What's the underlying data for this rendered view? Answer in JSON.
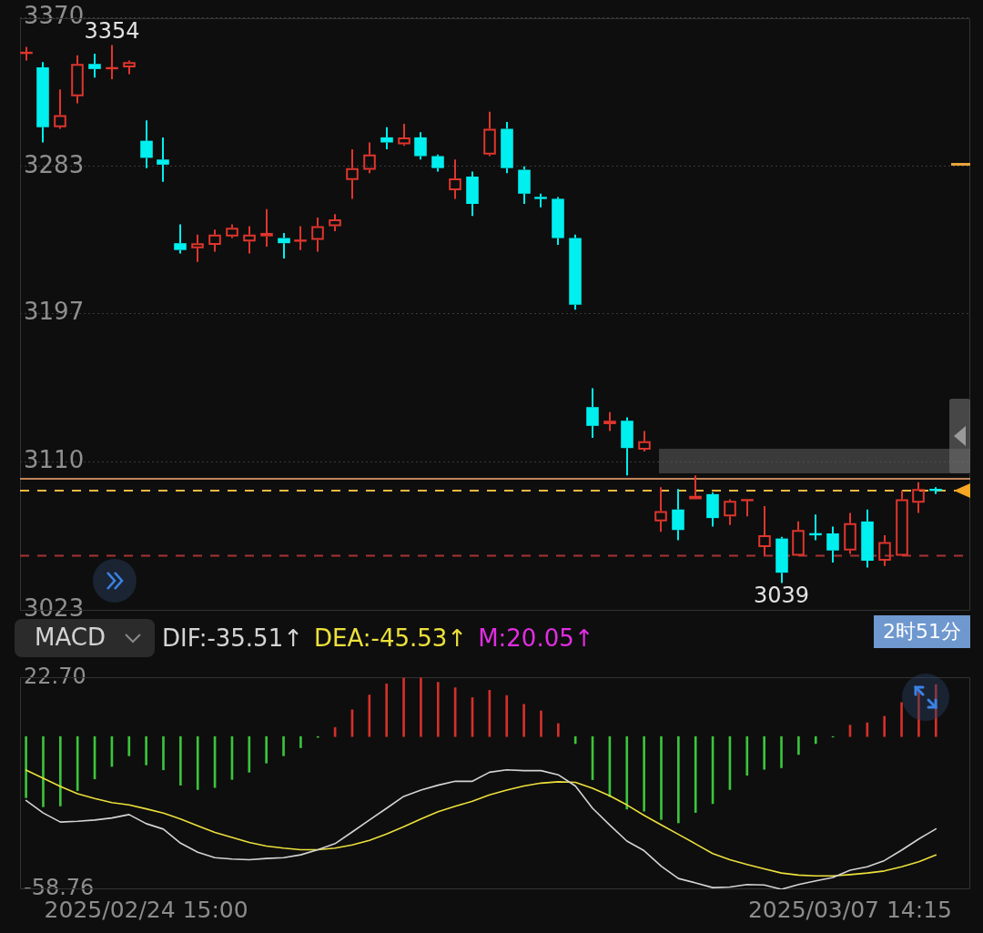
{
  "chart_data": [
    {
      "type": "candlestick",
      "categories": [
        null,
        null,
        null,
        null,
        null,
        null,
        null,
        "2025/02/24 15:00",
        null,
        null,
        null,
        null,
        null,
        null,
        null,
        null,
        null,
        null,
        null,
        null,
        null,
        null,
        null,
        null,
        null,
        null,
        null,
        null,
        null,
        null,
        null,
        null,
        null,
        null,
        null,
        null,
        null,
        null,
        null,
        null,
        null,
        null,
        null,
        null,
        null,
        null,
        null,
        null,
        "2025/03/07 14:15",
        null,
        null,
        null,
        null,
        null
      ],
      "ohlc": [
        [
          3349,
          3353,
          3345,
          3350
        ],
        [
          3341,
          3344,
          3297,
          3306
        ],
        [
          3306,
          3328,
          3305,
          3313
        ],
        [
          3324,
          3348,
          3320,
          3343
        ],
        [
          3343,
          3349,
          3335,
          3340
        ],
        [
          3340,
          3354,
          3334,
          3341
        ],
        [
          3341,
          3345,
          3337,
          3344
        ],
        [
          3298,
          3310,
          3282,
          3288
        ],
        [
          3287,
          3300,
          3274,
          3284
        ],
        [
          3238,
          3249,
          3232,
          3234
        ],
        [
          3235,
          3243,
          3227,
          3238
        ],
        [
          3237,
          3246,
          3233,
          3243
        ],
        [
          3242,
          3249,
          3241,
          3247
        ],
        [
          3239,
          3248,
          3232,
          3243
        ],
        [
          3242,
          3258,
          3236,
          3244
        ],
        [
          3241,
          3244,
          3229,
          3238
        ],
        [
          3239,
          3248,
          3234,
          3240
        ],
        [
          3240,
          3253,
          3233,
          3248
        ],
        [
          3248,
          3255,
          3245,
          3252
        ],
        [
          3275,
          3293,
          3264,
          3282
        ],
        [
          3281,
          3297,
          3279,
          3290
        ],
        [
          3300,
          3306,
          3293,
          3297
        ],
        [
          3296,
          3308,
          3295,
          3300
        ],
        [
          3300,
          3303,
          3287,
          3289
        ],
        [
          3289,
          3290,
          3280,
          3282
        ],
        [
          3269,
          3287,
          3264,
          3276
        ],
        [
          3277,
          3280,
          3254,
          3261
        ],
        [
          3290,
          3315,
          3289,
          3305
        ],
        [
          3305,
          3309,
          3279,
          3282
        ],
        [
          3281,
          3283,
          3261,
          3267
        ],
        [
          3265,
          3267,
          3259,
          3264
        ],
        [
          3264,
          3265,
          3237,
          3241
        ],
        [
          3241,
          3243,
          3199,
          3202
        ],
        [
          3142,
          3153,
          3124,
          3131
        ],
        [
          3132,
          3139,
          3128,
          3134
        ],
        [
          3134,
          3136,
          3102,
          3118
        ],
        [
          3117,
          3128,
          3116,
          3122
        ],
        [
          3075,
          3095,
          3069,
          3081
        ],
        [
          3082,
          3094,
          3064,
          3070
        ],
        [
          3088,
          3102,
          3088,
          3090
        ],
        [
          3091,
          3092,
          3072,
          3077
        ],
        [
          3078,
          3088,
          3073,
          3087
        ],
        [
          3087,
          3088,
          3078,
          3088
        ],
        [
          3060,
          3084,
          3055,
          3067
        ],
        [
          3065,
          3066,
          3039,
          3045
        ],
        [
          3055,
          3075,
          3055,
          3070
        ],
        [
          3068,
          3079,
          3064,
          3067
        ],
        [
          3068,
          3072,
          3051,
          3058
        ],
        [
          3058,
          3080,
          3056,
          3074
        ],
        [
          3075,
          3082,
          3048,
          3052
        ],
        [
          3052,
          3067,
          3049,
          3063
        ],
        [
          3055,
          3093,
          3055,
          3088
        ],
        [
          3086,
          3098,
          3080,
          3094
        ],
        [
          3094,
          3095,
          3091,
          3093
        ]
      ],
      "colors": [
        "#e0352d",
        "#00f0f0",
        "#e0352d",
        "#e0352d",
        "#00f0f0",
        "#e0352d",
        "#e0352d",
        "#00f0f0",
        "#00f0f0",
        "#00f0f0",
        "#e0352d",
        "#e0352d",
        "#e0352d",
        "#e0352d",
        "#e0352d",
        "#00f0f0",
        "#e0352d",
        "#e0352d",
        "#e0352d",
        "#e0352d",
        "#e0352d",
        "#00f0f0",
        "#e0352d",
        "#00f0f0",
        "#00f0f0",
        "#e0352d",
        "#00f0f0",
        "#e0352d",
        "#00f0f0",
        "#00f0f0",
        "#00f0f0",
        "#00f0f0",
        "#00f0f0",
        "#00f0f0",
        "#e0352d",
        "#00f0f0",
        "#e0352d",
        "#e0352d",
        "#00f0f0",
        "#e0352d",
        "#00f0f0",
        "#e0352d",
        "#e0352d",
        "#e0352d",
        "#00f0f0",
        "#e0352d",
        "#00f0f0",
        "#00f0f0",
        "#e0352d",
        "#00f0f0",
        "#e0352d",
        "#e0352d",
        "#e0352d",
        "#00f0f0"
      ],
      "ylim": [
        3023,
        3370
      ],
      "yticks": [
        3370,
        3283,
        3197,
        3110,
        3023
      ],
      "grid": "y",
      "tick_labels": "y",
      "ref_lines": [
        {
          "axis": "y",
          "value": 3100,
          "color": "#c0845a",
          "line_style": "solid"
        },
        {
          "axis": "y",
          "value": 3093,
          "color": "#f5b942",
          "line_style": "dashed"
        },
        {
          "axis": "y",
          "value": 3055,
          "color": "#a83232",
          "line_style": "dashed"
        }
      ],
      "annotations": [
        {
          "text": "3354",
          "y": 3354
        },
        {
          "text": "3039",
          "y": 3039
        }
      ]
    },
    {
      "type": "bar",
      "title": "MACD",
      "categories": [
        null,
        null,
        null,
        null,
        null,
        null,
        null,
        "2025/02/24 15:00",
        null,
        null,
        null,
        null,
        null,
        null,
        null,
        null,
        null,
        null,
        null,
        null,
        null,
        null,
        null,
        null,
        null,
        null,
        null,
        null,
        null,
        null,
        null,
        null,
        null,
        null,
        null,
        null,
        null,
        null,
        null,
        null,
        null,
        null,
        null,
        null,
        null,
        null,
        null,
        null,
        "2025/03/07 14:15",
        null,
        null,
        null,
        null,
        null
      ],
      "series": [
        {
          "name": "DIF:-35.51↑",
          "type": "line",
          "color": "#d4d4d4",
          "values": [
            -24.6,
            -29.4,
            -32.9,
            -32.6,
            -32.1,
            -31.3,
            -30.0,
            -33.5,
            -35.6,
            -41.0,
            -44.5,
            -46.6,
            -47.1,
            -47.4,
            -46.9,
            -46.6,
            -45.5,
            -43.5,
            -41.2,
            -36.7,
            -32.1,
            -27.6,
            -23.0,
            -20.6,
            -18.7,
            -17.2,
            -17.2,
            -13.7,
            -12.8,
            -13.1,
            -13.1,
            -14.7,
            -19.0,
            -27.6,
            -34.0,
            -40.2,
            -43.9,
            -49.9,
            -54.6,
            -56.3,
            -58.1,
            -57.9,
            -56.9,
            -57.1,
            -58.76,
            -56.9,
            -55.5,
            -54.2,
            -51.4,
            -50.1,
            -47.7,
            -43.7,
            -39.4,
            -35.51
          ]
        },
        {
          "name": "DEA:-45.53↑",
          "type": "line",
          "color": "#ece03c",
          "values": [
            -12.9,
            -16.0,
            -19.2,
            -22.0,
            -23.8,
            -25.4,
            -26.3,
            -27.8,
            -29.4,
            -31.7,
            -34.3,
            -36.9,
            -38.8,
            -40.7,
            -42.1,
            -42.9,
            -43.5,
            -43.5,
            -42.9,
            -41.7,
            -39.9,
            -37.5,
            -34.7,
            -31.7,
            -28.9,
            -26.8,
            -24.9,
            -22.4,
            -20.6,
            -19.0,
            -17.9,
            -17.4,
            -17.6,
            -19.9,
            -22.8,
            -26.3,
            -30.3,
            -34.0,
            -37.6,
            -41.3,
            -45.0,
            -47.4,
            -49.2,
            -50.9,
            -52.5,
            -53.3,
            -53.6,
            -53.6,
            -53.1,
            -52.5,
            -51.7,
            -50.1,
            -48.2,
            -45.53
          ]
        },
        {
          "name": "M:20.05↑",
          "type": "bar",
          "color": "#e22de2",
          "colors": [
            "#3cc43c",
            "#3cc43c",
            "#3cc43c",
            "#3cc43c",
            "#3cc43c",
            "#3cc43c",
            "#3cc43c",
            "#3cc43c",
            "#3cc43c",
            "#3cc43c",
            "#3cc43c",
            "#3cc43c",
            "#3cc43c",
            "#3cc43c",
            "#3cc43c",
            "#3cc43c",
            "#3cc43c",
            "#3cc43c",
            "#d5302a",
            "#d5302a",
            "#d5302a",
            "#d5302a",
            "#d5302a",
            "#d5302a",
            "#d5302a",
            "#d5302a",
            "#d5302a",
            "#d5302a",
            "#d5302a",
            "#d5302a",
            "#d5302a",
            "#d5302a",
            "#3cc43c",
            "#3cc43c",
            "#3cc43c",
            "#3cc43c",
            "#3cc43c",
            "#3cc43c",
            "#3cc43c",
            "#3cc43c",
            "#3cc43c",
            "#3cc43c",
            "#3cc43c",
            "#3cc43c",
            "#3cc43c",
            "#3cc43c",
            "#3cc43c",
            "#3cc43c",
            "#d5302a",
            "#d5302a",
            "#d5302a",
            "#d5302a",
            "#d5302a",
            "#d5302a"
          ],
          "values": [
            -23.5,
            -27.0,
            -26.7,
            -20.8,
            -16.3,
            -11.5,
            -7.4,
            -10.9,
            -12.8,
            -18.7,
            -20.4,
            -19.6,
            -16.5,
            -13.7,
            -10.2,
            -7.4,
            -4.3,
            -0.3,
            3.5,
            10.3,
            16.0,
            20.3,
            22.6,
            22.7,
            20.9,
            18.8,
            15.0,
            17.8,
            15.8,
            12.4,
            9.9,
            5.0,
            -2.7,
            -16.6,
            -23.1,
            -27.9,
            -28.7,
            -31.9,
            -33.2,
            -29.2,
            -25.8,
            -20.4,
            -14.9,
            -12.6,
            -12.0,
            -6.9,
            -2.7,
            -0.2,
            4.4,
            5.3,
            7.8,
            13.1,
            17.6,
            20.05
          ]
        }
      ],
      "ylim": [
        -58.76,
        22.7
      ],
      "yticks": [
        {
          "value": 22.7,
          "label": "22.70"
        },
        -58.76
      ],
      "legend": "top left",
      "annotations": [
        "2时51分"
      ]
    }
  ]
}
